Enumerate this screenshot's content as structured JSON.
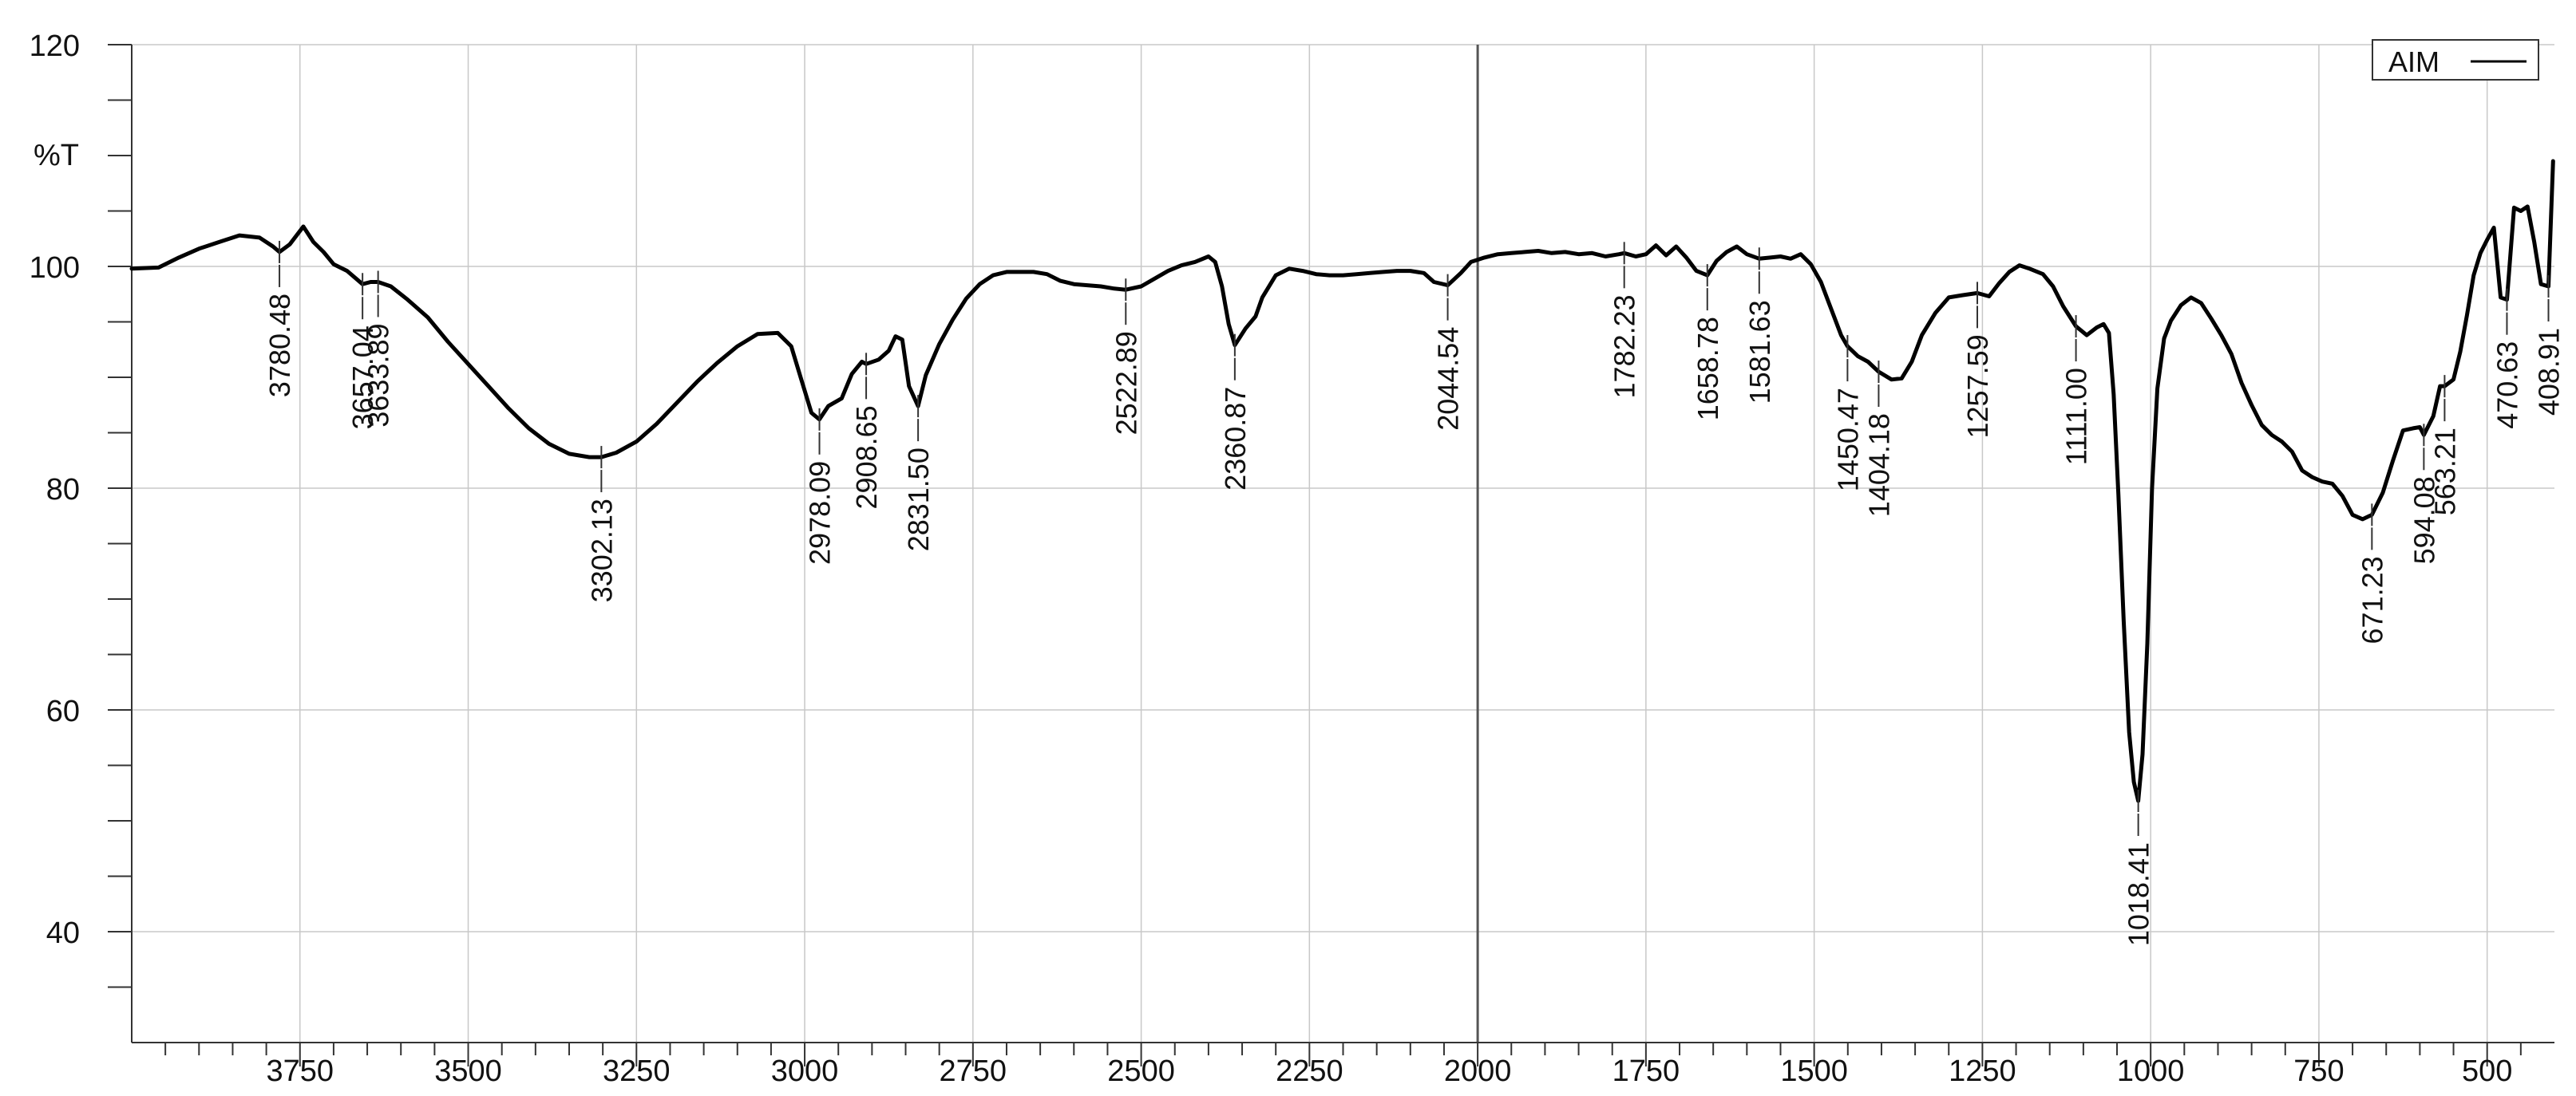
{
  "chart_data": {
    "type": "line",
    "xlabel": "",
    "ylabel": "%T",
    "xlim": [
      4000,
      400
    ],
    "ylim": [
      30,
      120
    ],
    "x_reversed": true,
    "grid": true,
    "legend": {
      "placement": "top-right"
    },
    "x_ticks": [
      3750,
      3500,
      3250,
      3000,
      2750,
      2500,
      2250,
      2000,
      1750,
      1500,
      1250,
      1000,
      750,
      500
    ],
    "y_ticks": [
      40,
      60,
      80,
      100,
      120
    ],
    "series": [
      {
        "name": "AIM",
        "color": "#000000",
        "x": [
          4000,
          3960,
          3930,
          3900,
          3870,
          3840,
          3810,
          3790,
          3780.48,
          3765,
          3745,
          3730,
          3715,
          3700,
          3680,
          3657.04,
          3645,
          3633.89,
          3615,
          3590,
          3560,
          3530,
          3500,
          3470,
          3440,
          3410,
          3380,
          3350,
          3320,
          3302.13,
          3280,
          3250,
          3220,
          3190,
          3160,
          3130,
          3100,
          3070,
          3040,
          3020,
          3005,
          2990,
          2978.09,
          2965,
          2945,
          2930,
          2915,
          2908.65,
          2890,
          2875,
          2865,
          2855,
          2845,
          2831.5,
          2820,
          2800,
          2780,
          2760,
          2740,
          2720,
          2700,
          2680,
          2660,
          2640,
          2620,
          2600,
          2580,
          2560,
          2540,
          2522.89,
          2500,
          2480,
          2460,
          2440,
          2420,
          2400,
          2390,
          2380,
          2370,
          2360.87,
          2345,
          2330,
          2320,
          2300,
          2280,
          2260,
          2240,
          2220,
          2200,
          2180,
          2160,
          2140,
          2120,
          2100,
          2080,
          2065,
          2044.54,
          2025,
          2010,
          1990,
          1970,
          1950,
          1930,
          1910,
          1890,
          1870,
          1850,
          1830,
          1810,
          1790,
          1782.23,
          1765,
          1750,
          1735,
          1720,
          1705,
          1690,
          1675,
          1658.78,
          1645,
          1630,
          1615,
          1600,
          1581.63,
          1565,
          1550,
          1535,
          1520,
          1505,
          1490,
          1475,
          1460,
          1450.47,
          1435,
          1420,
          1404.18,
          1385,
          1370,
          1355,
          1340,
          1320,
          1300,
          1280,
          1257.59,
          1240,
          1225,
          1210,
          1195,
          1180,
          1160,
          1145,
          1130,
          1111,
          1095,
          1080,
          1070,
          1062,
          1055,
          1048,
          1040,
          1032,
          1025,
          1018.41,
          1012,
          1005,
          998,
          990,
          980,
          970,
          955,
          940,
          925,
          910,
          895,
          880,
          865,
          850,
          835,
          820,
          805,
          790,
          775,
          760,
          745,
          730,
          715,
          700,
          685,
          671.23,
          655,
          640,
          625,
          610,
          600,
          594.08,
          580,
          570,
          563.21,
          550,
          540,
          530,
          520,
          510,
          500,
          490,
          480,
          470.63,
          460,
          450,
          440,
          430,
          420,
          408.91,
          402
        ],
        "y": [
          99.8,
          99.9,
          100.8,
          101.6,
          102.2,
          102.8,
          102.6,
          101.8,
          101.3,
          102,
          103.6,
          102.2,
          101.3,
          100.2,
          99.6,
          98.4,
          98.6,
          98.6,
          98.2,
          97,
          95.4,
          93.2,
          91.2,
          89.2,
          87.2,
          85.4,
          84,
          83.1,
          82.8,
          82.8,
          83.2,
          84.2,
          85.8,
          87.7,
          89.6,
          91.3,
          92.8,
          93.9,
          94,
          92.8,
          89.8,
          86.8,
          86.2,
          87.4,
          88.1,
          90.3,
          91.4,
          91.2,
          91.6,
          92.4,
          93.7,
          93.4,
          89.2,
          87.4,
          90.2,
          93,
          95.2,
          97.1,
          98.4,
          99.2,
          99.5,
          99.5,
          99.5,
          99.3,
          98.7,
          98.4,
          98.3,
          98.2,
          98,
          97.9,
          98.2,
          98.9,
          99.6,
          100.1,
          100.4,
          100.9,
          100.4,
          98.2,
          94.8,
          92.9,
          94.4,
          95.5,
          97.2,
          99.2,
          99.8,
          99.6,
          99.3,
          99.2,
          99.2,
          99.3,
          99.4,
          99.5,
          99.6,
          99.6,
          99.4,
          98.6,
          98.3,
          99.4,
          100.4,
          100.8,
          101.1,
          101.2,
          101.3,
          101.4,
          101.2,
          101.3,
          101.1,
          101.2,
          100.9,
          101.1,
          101.2,
          100.9,
          101.1,
          101.9,
          101,
          101.8,
          100.8,
          99.6,
          99.2,
          100.5,
          101.3,
          101.8,
          101.1,
          100.7,
          100.8,
          100.9,
          100.7,
          101.1,
          100.2,
          98.6,
          96.2,
          93.8,
          92.8,
          91.9,
          91.4,
          90.5,
          89.8,
          89.9,
          91.4,
          93.8,
          95.8,
          97.2,
          97.4,
          97.6,
          97.3,
          98.5,
          99.5,
          100.1,
          99.8,
          99.3,
          98.2,
          96.4,
          94.6,
          93.8,
          94.5,
          94.8,
          94,
          88.5,
          79.5,
          68,
          58,
          53.5,
          51.8,
          56,
          66,
          80,
          89,
          93.5,
          95.1,
          96.5,
          97.2,
          96.7,
          95.3,
          93.8,
          92.1,
          89.5,
          87.5,
          85.7,
          84.8,
          84.2,
          83.3,
          81.6,
          81,
          80.6,
          80.4,
          79.3,
          77.6,
          77.2,
          77.6,
          79.6,
          82.5,
          85.2,
          85.4,
          85.5,
          84.8,
          86.5,
          89.2,
          89.2,
          89.8,
          92.3,
          95.6,
          99.2,
          101.2,
          102.4,
          103.5,
          97.2,
          97,
          105.3,
          105,
          105.4,
          102.2,
          98.4,
          98.2,
          109.5
        ]
      }
    ],
    "peak_labels": [
      {
        "x": 3780.48,
        "text": "3780.48"
      },
      {
        "x": 3657.04,
        "text": "3657.04"
      },
      {
        "x": 3633.89,
        "text": "3633.89"
      },
      {
        "x": 3302.13,
        "text": "3302.13"
      },
      {
        "x": 2978.09,
        "text": "2978.09"
      },
      {
        "x": 2908.65,
        "text": "2908.65"
      },
      {
        "x": 2831.5,
        "text": "2831.50"
      },
      {
        "x": 2522.89,
        "text": "2522.89"
      },
      {
        "x": 2360.87,
        "text": "2360.87"
      },
      {
        "x": 2044.54,
        "text": "2044.54"
      },
      {
        "x": 1782.23,
        "text": "1782.23"
      },
      {
        "x": 1658.78,
        "text": "1658.78"
      },
      {
        "x": 1581.63,
        "text": "1581.63"
      },
      {
        "x": 1450.47,
        "text": "1450.47"
      },
      {
        "x": 1404.18,
        "text": "1404.18"
      },
      {
        "x": 1257.59,
        "text": "1257.59"
      },
      {
        "x": 1111.0,
        "text": "1111.00"
      },
      {
        "x": 1018.41,
        "text": "1018.41"
      },
      {
        "x": 671.23,
        "text": "671.23"
      },
      {
        "x": 594.08,
        "text": "594.08"
      },
      {
        "x": 563.21,
        "text": "563.21"
      },
      {
        "x": 470.63,
        "text": "470.63"
      },
      {
        "x": 408.91,
        "text": "408.91"
      }
    ]
  }
}
